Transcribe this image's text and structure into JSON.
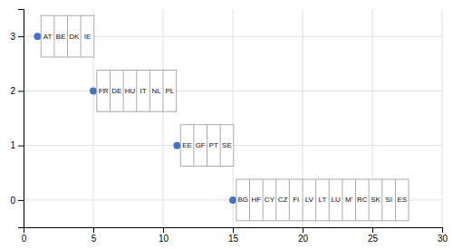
{
  "chart_data": {
    "type": "scatter",
    "x": [
      1,
      5,
      11,
      15
    ],
    "values": [
      3,
      2,
      1,
      0
    ],
    "labels": [
      [
        "AT",
        "BE",
        "DK",
        "IE"
      ],
      [
        "FR",
        "DE",
        "HU",
        "IT",
        "NL",
        "PL"
      ],
      [
        "EE",
        "GF",
        "PT",
        "SE"
      ],
      [
        "BG",
        "HF",
        "CY",
        "CZ",
        "FI",
        "LV",
        "LT",
        "LU",
        "M'",
        "RC",
        "SK",
        "SI",
        "ES"
      ]
    ],
    "color": "#4472C4",
    "xlim": [
      0,
      30
    ],
    "ylim": [
      -0.5,
      3.5
    ],
    "xticks": [
      0,
      5,
      10,
      15,
      20,
      25,
      30
    ],
    "yticks": [
      0,
      1,
      2,
      3
    ],
    "grid": true
  }
}
